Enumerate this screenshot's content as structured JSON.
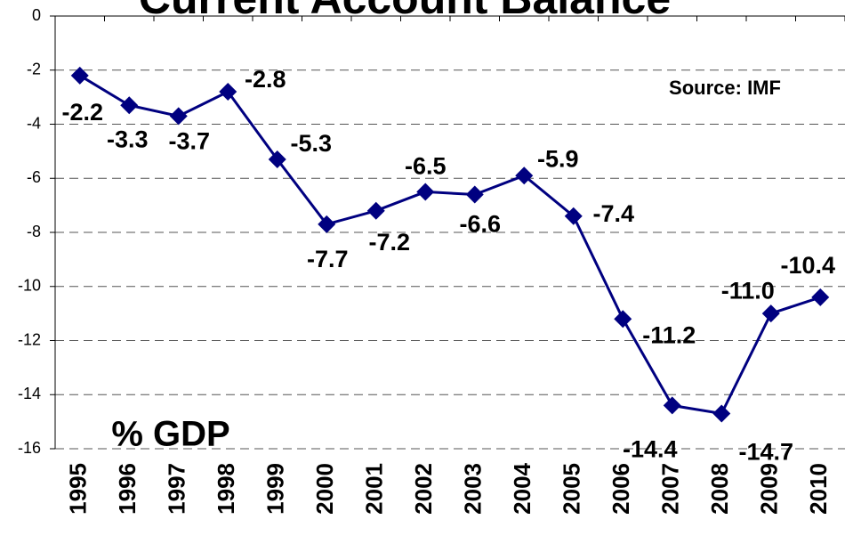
{
  "chart_data": {
    "type": "line",
    "title": "Current Account Balance",
    "annotations": [
      "Source: IMF",
      "% GDP"
    ],
    "categories": [
      "1995",
      "1996",
      "1997",
      "1998",
      "1999",
      "2000",
      "2001",
      "2002",
      "2003",
      "2004",
      "2005",
      "2006",
      "2007",
      "2008",
      "2009",
      "2010"
    ],
    "series": [
      {
        "name": "Current Account Balance",
        "color": "#000080",
        "values": [
          -2.2,
          -3.3,
          -3.7,
          -2.8,
          -5.3,
          -7.7,
          -7.2,
          -6.5,
          -6.6,
          -5.9,
          -7.4,
          -11.2,
          -14.4,
          -14.7,
          -11.0,
          -10.4
        ],
        "value_labels": [
          "-2.2",
          "-3.3",
          "-3.7",
          "-2.8",
          "-5.3",
          "-7.7",
          "-7.2",
          "-6.5",
          "-6.6",
          "-5.9",
          "-7.4",
          "-11.2",
          "-14.4",
          "-14.7",
          "-11.0",
          "-10.4"
        ]
      }
    ],
    "ylim": [
      -16,
      0
    ],
    "yticks": [
      0,
      -2,
      -4,
      -6,
      -8,
      -10,
      -12,
      -14,
      -16
    ],
    "grid": true
  }
}
